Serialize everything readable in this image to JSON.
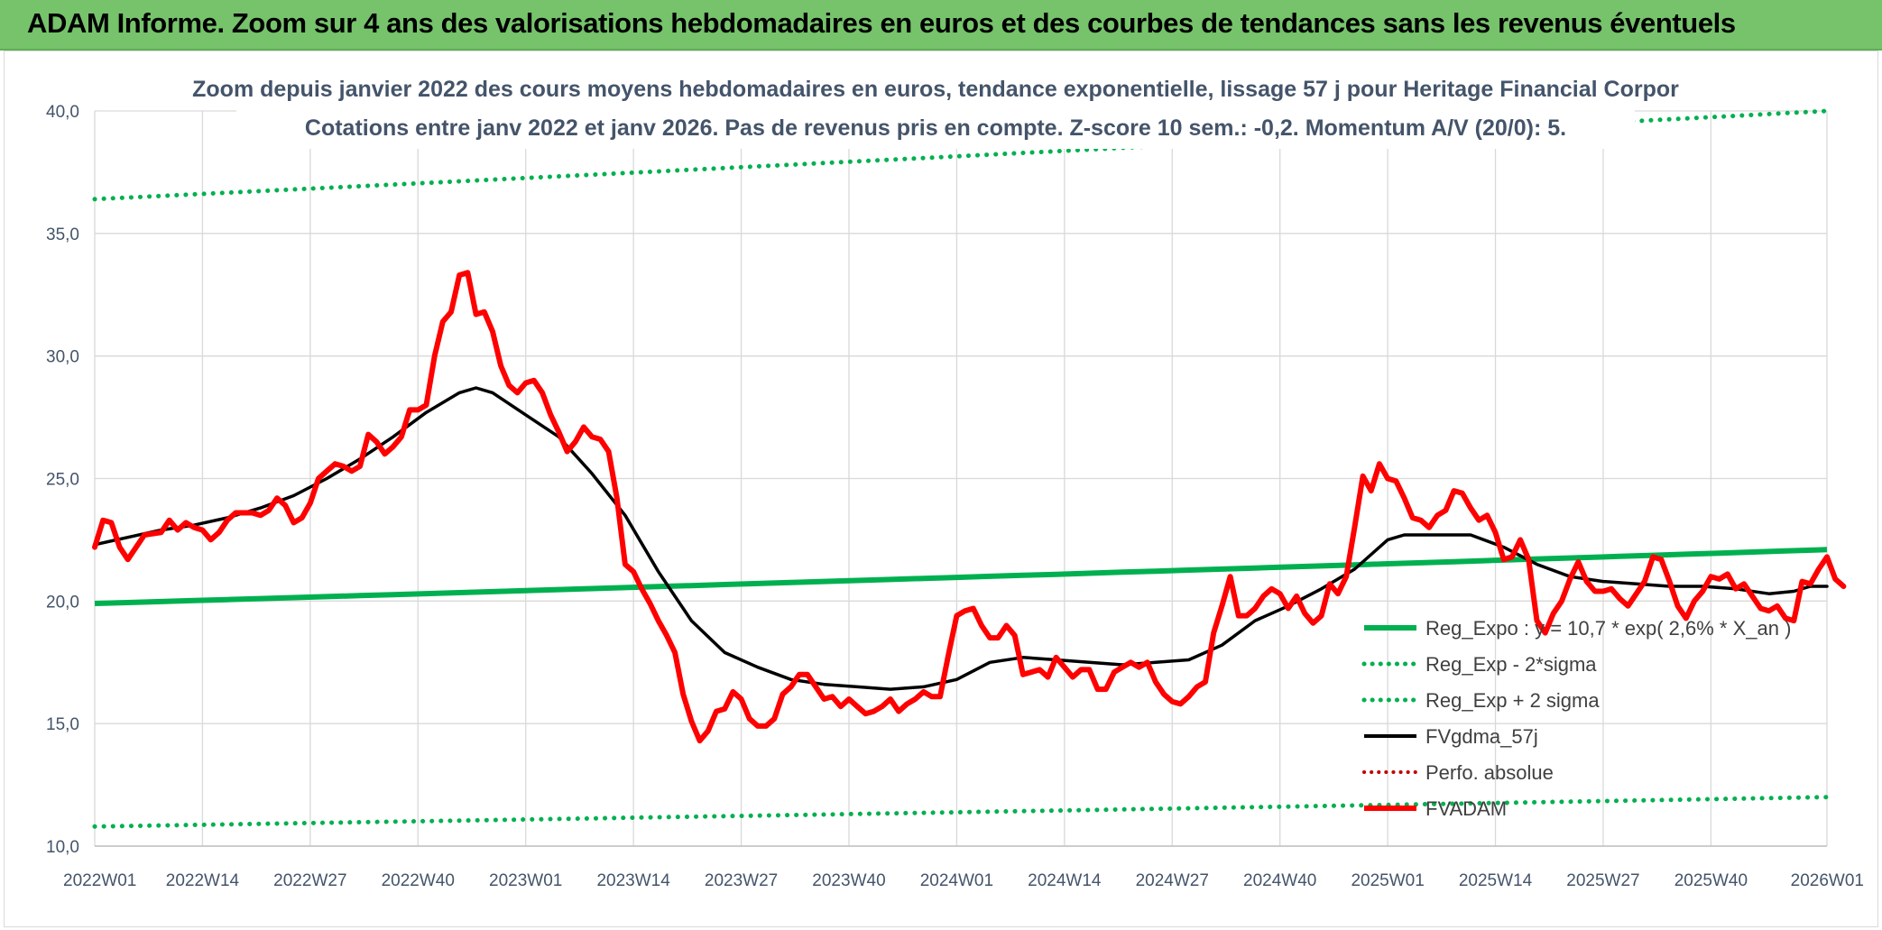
{
  "banner": {
    "title": "ADAM Informe. Zoom sur 4 ans des valorisations hebdomadaires en euros et des courbes de tendances sans les revenus éventuels"
  },
  "colors": {
    "banner_bg": "#76c36b",
    "reg_exp": "#00b050",
    "fvgdma": "#000000",
    "fvadam": "#ff0000",
    "perfo": "#c00000",
    "grid": "#d9d9d9",
    "axis_text": "#44546a"
  },
  "chart_data": {
    "type": "line",
    "title": "Zoom depuis janvier 2022 des cours moyens hebdomadaires en euros, tendance exponentielle, lissage 57 j pour Heritage Financial Corpor",
    "subtitle": "Cotations entre janv 2022 et janv 2026. Pas de revenus pris en compte. Z-score 10 sem.: -0,2. Momentum A/V (20/0): 5.",
    "xlabel": "",
    "ylabel": "",
    "ylim": [
      10,
      40
    ],
    "y_ticks": [
      "10,0",
      "15,0",
      "20,0",
      "25,0",
      "30,0",
      "35,0",
      "40,0"
    ],
    "x_ticks": [
      "2022W01",
      "2022W14",
      "2022W27",
      "2022W40",
      "2023W01",
      "2023W14",
      "2023W27",
      "2023W40",
      "2024W01",
      "2024W14",
      "2024W27",
      "2024W40",
      "2025W01",
      "2025W14",
      "2025W27",
      "2025W40",
      "2026W01"
    ],
    "x_range_weeks": [
      0,
      209
    ],
    "grid": true,
    "legend_position": "bottom-right",
    "series": [
      {
        "name": "Reg_Expo : y = 10,7 * exp( 2,6% *  X_an )",
        "style": "thick",
        "start": 19.9,
        "end": 22.1
      },
      {
        "name": "Reg_Exp - 2*sigma",
        "style": "dotted",
        "start": 10.8,
        "end": 12.0
      },
      {
        "name": "Reg_Exp + 2 sigma",
        "style": "dotted",
        "start": 36.4,
        "end": 40.0
      },
      {
        "name": "FVgdma_57j",
        "style": "solid",
        "points": [
          [
            0,
            22.3
          ],
          [
            4,
            22.6
          ],
          [
            8,
            22.9
          ],
          [
            12,
            23.1
          ],
          [
            16,
            23.4
          ],
          [
            20,
            23.8
          ],
          [
            24,
            24.3
          ],
          [
            28,
            25.0
          ],
          [
            32,
            25.8
          ],
          [
            36,
            26.7
          ],
          [
            40,
            27.7
          ],
          [
            44,
            28.5
          ],
          [
            46,
            28.7
          ],
          [
            48,
            28.5
          ],
          [
            52,
            27.6
          ],
          [
            56,
            26.7
          ],
          [
            60,
            25.2
          ],
          [
            64,
            23.5
          ],
          [
            68,
            21.2
          ],
          [
            72,
            19.2
          ],
          [
            76,
            17.9
          ],
          [
            80,
            17.3
          ],
          [
            84,
            16.8
          ],
          [
            88,
            16.6
          ],
          [
            92,
            16.5
          ],
          [
            96,
            16.4
          ],
          [
            100,
            16.5
          ],
          [
            104,
            16.8
          ],
          [
            108,
            17.5
          ],
          [
            112,
            17.7
          ],
          [
            116,
            17.6
          ],
          [
            120,
            17.5
          ],
          [
            124,
            17.4
          ],
          [
            128,
            17.5
          ],
          [
            132,
            17.6
          ],
          [
            136,
            18.2
          ],
          [
            140,
            19.2
          ],
          [
            144,
            19.8
          ],
          [
            148,
            20.5
          ],
          [
            152,
            21.3
          ],
          [
            156,
            22.5
          ],
          [
            158,
            22.7
          ],
          [
            162,
            22.7
          ],
          [
            166,
            22.7
          ],
          [
            170,
            22.2
          ],
          [
            174,
            21.5
          ],
          [
            178,
            21.0
          ],
          [
            182,
            20.8
          ],
          [
            186,
            20.7
          ],
          [
            190,
            20.6
          ],
          [
            194,
            20.6
          ],
          [
            198,
            20.5
          ],
          [
            202,
            20.3
          ],
          [
            205,
            20.4
          ],
          [
            207,
            20.6
          ],
          [
            209,
            20.6
          ]
        ]
      },
      {
        "name": "Perfo. absolue",
        "style": "dotted-red",
        "points": []
      },
      {
        "name": "FVADAM",
        "style": "thick-red",
        "points": [
          [
            0,
            22.2
          ],
          [
            1,
            23.3
          ],
          [
            2,
            23.2
          ],
          [
            3,
            22.2
          ],
          [
            4,
            21.7
          ],
          [
            6,
            22.7
          ],
          [
            8,
            22.8
          ],
          [
            9,
            23.3
          ],
          [
            10,
            22.9
          ],
          [
            11,
            23.2
          ],
          [
            12,
            23.0
          ],
          [
            13,
            22.9
          ],
          [
            14,
            22.5
          ],
          [
            15,
            22.8
          ],
          [
            16,
            23.3
          ],
          [
            17,
            23.6
          ],
          [
            18,
            23.6
          ],
          [
            19,
            23.6
          ],
          [
            20,
            23.5
          ],
          [
            21,
            23.7
          ],
          [
            22,
            24.2
          ],
          [
            23,
            23.9
          ],
          [
            24,
            23.2
          ],
          [
            25,
            23.4
          ],
          [
            26,
            24.0
          ],
          [
            27,
            25.0
          ],
          [
            28,
            25.3
          ],
          [
            29,
            25.6
          ],
          [
            30,
            25.5
          ],
          [
            31,
            25.3
          ],
          [
            32,
            25.5
          ],
          [
            33,
            26.8
          ],
          [
            34,
            26.5
          ],
          [
            35,
            26.0
          ],
          [
            36,
            26.3
          ],
          [
            37,
            26.7
          ],
          [
            38,
            27.8
          ],
          [
            39,
            27.8
          ],
          [
            40,
            28.0
          ],
          [
            41,
            30.0
          ],
          [
            42,
            31.4
          ],
          [
            43,
            31.8
          ],
          [
            44,
            33.3
          ],
          [
            45,
            33.4
          ],
          [
            46,
            31.7
          ],
          [
            47,
            31.8
          ],
          [
            48,
            31.0
          ],
          [
            49,
            29.6
          ],
          [
            50,
            28.8
          ],
          [
            51,
            28.5
          ],
          [
            52,
            28.9
          ],
          [
            53,
            29.0
          ],
          [
            54,
            28.5
          ],
          [
            55,
            27.6
          ],
          [
            56,
            26.9
          ],
          [
            57,
            26.1
          ],
          [
            58,
            26.5
          ],
          [
            59,
            27.1
          ],
          [
            60,
            26.7
          ],
          [
            61,
            26.6
          ],
          [
            62,
            26.1
          ],
          [
            63,
            24.2
          ],
          [
            64,
            21.5
          ],
          [
            65,
            21.2
          ],
          [
            66,
            20.5
          ],
          [
            67,
            19.9
          ],
          [
            68,
            19.2
          ],
          [
            69,
            18.6
          ],
          [
            70,
            17.9
          ],
          [
            71,
            16.2
          ],
          [
            72,
            15.1
          ],
          [
            73,
            14.3
          ],
          [
            74,
            14.7
          ],
          [
            75,
            15.5
          ],
          [
            76,
            15.6
          ],
          [
            77,
            16.3
          ],
          [
            78,
            16.0
          ],
          [
            79,
            15.2
          ],
          [
            80,
            14.9
          ],
          [
            81,
            14.9
          ],
          [
            82,
            15.2
          ],
          [
            83,
            16.2
          ],
          [
            84,
            16.5
          ],
          [
            85,
            17.0
          ],
          [
            86,
            17.0
          ],
          [
            87,
            16.5
          ],
          [
            88,
            16.0
          ],
          [
            89,
            16.1
          ],
          [
            90,
            15.7
          ],
          [
            91,
            16.0
          ],
          [
            92,
            15.7
          ],
          [
            93,
            15.4
          ],
          [
            94,
            15.5
          ],
          [
            95,
            15.7
          ],
          [
            96,
            16.0
          ],
          [
            97,
            15.5
          ],
          [
            98,
            15.8
          ],
          [
            99,
            16.0
          ],
          [
            100,
            16.3
          ],
          [
            101,
            16.1
          ],
          [
            102,
            16.1
          ],
          [
            103,
            17.8
          ],
          [
            104,
            19.4
          ],
          [
            105,
            19.6
          ],
          [
            106,
            19.7
          ],
          [
            107,
            19.0
          ],
          [
            108,
            18.5
          ],
          [
            109,
            18.5
          ],
          [
            110,
            19.0
          ],
          [
            111,
            18.6
          ],
          [
            112,
            17.0
          ],
          [
            113,
            17.1
          ],
          [
            114,
            17.2
          ],
          [
            115,
            16.9
          ],
          [
            116,
            17.7
          ],
          [
            117,
            17.3
          ],
          [
            118,
            16.9
          ],
          [
            119,
            17.2
          ],
          [
            120,
            17.2
          ],
          [
            121,
            16.4
          ],
          [
            122,
            16.4
          ],
          [
            123,
            17.1
          ],
          [
            124,
            17.3
          ],
          [
            125,
            17.5
          ],
          [
            126,
            17.3
          ],
          [
            127,
            17.5
          ],
          [
            128,
            16.7
          ],
          [
            129,
            16.2
          ],
          [
            130,
            15.9
          ],
          [
            131,
            15.8
          ],
          [
            132,
            16.1
          ],
          [
            133,
            16.5
          ],
          [
            134,
            16.7
          ],
          [
            135,
            18.7
          ],
          [
            136,
            19.8
          ],
          [
            137,
            21.0
          ],
          [
            138,
            19.4
          ],
          [
            139,
            19.4
          ],
          [
            140,
            19.7
          ],
          [
            141,
            20.2
          ],
          [
            142,
            20.5
          ],
          [
            143,
            20.3
          ],
          [
            144,
            19.7
          ],
          [
            145,
            20.2
          ],
          [
            146,
            19.5
          ],
          [
            147,
            19.1
          ],
          [
            148,
            19.4
          ],
          [
            149,
            20.7
          ],
          [
            150,
            20.3
          ],
          [
            151,
            21.0
          ],
          [
            152,
            23.0
          ],
          [
            153,
            25.1
          ],
          [
            154,
            24.5
          ],
          [
            155,
            25.6
          ],
          [
            156,
            25.0
          ],
          [
            157,
            24.9
          ],
          [
            158,
            24.2
          ],
          [
            159,
            23.4
          ],
          [
            160,
            23.3
          ],
          [
            161,
            23.0
          ],
          [
            162,
            23.5
          ],
          [
            163,
            23.7
          ],
          [
            164,
            24.5
          ],
          [
            165,
            24.4
          ],
          [
            166,
            23.8
          ],
          [
            167,
            23.3
          ],
          [
            168,
            23.5
          ],
          [
            169,
            22.8
          ],
          [
            170,
            21.7
          ],
          [
            171,
            21.8
          ],
          [
            172,
            22.5
          ],
          [
            173,
            21.7
          ],
          [
            174,
            19.2
          ],
          [
            175,
            18.7
          ],
          [
            176,
            19.5
          ],
          [
            177,
            20.0
          ],
          [
            178,
            20.9
          ],
          [
            179,
            21.6
          ],
          [
            180,
            20.8
          ],
          [
            181,
            20.4
          ],
          [
            182,
            20.4
          ],
          [
            183,
            20.5
          ],
          [
            184,
            20.1
          ],
          [
            185,
            19.8
          ],
          [
            186,
            20.3
          ],
          [
            187,
            20.8
          ],
          [
            188,
            21.8
          ],
          [
            189,
            21.7
          ],
          [
            190,
            20.8
          ],
          [
            191,
            19.8
          ],
          [
            192,
            19.3
          ],
          [
            193,
            20.0
          ],
          [
            194,
            20.4
          ],
          [
            195,
            21.0
          ],
          [
            196,
            20.9
          ],
          [
            197,
            21.1
          ],
          [
            198,
            20.5
          ],
          [
            199,
            20.7
          ],
          [
            200,
            20.2
          ],
          [
            201,
            19.7
          ],
          [
            202,
            19.6
          ],
          [
            203,
            19.8
          ],
          [
            204,
            19.3
          ],
          [
            205,
            19.2
          ],
          [
            206,
            20.8
          ],
          [
            207,
            20.7
          ],
          [
            208,
            21.3
          ],
          [
            209,
            21.8
          ],
          [
            210,
            20.9
          ],
          [
            211,
            20.6
          ]
        ]
      }
    ]
  }
}
